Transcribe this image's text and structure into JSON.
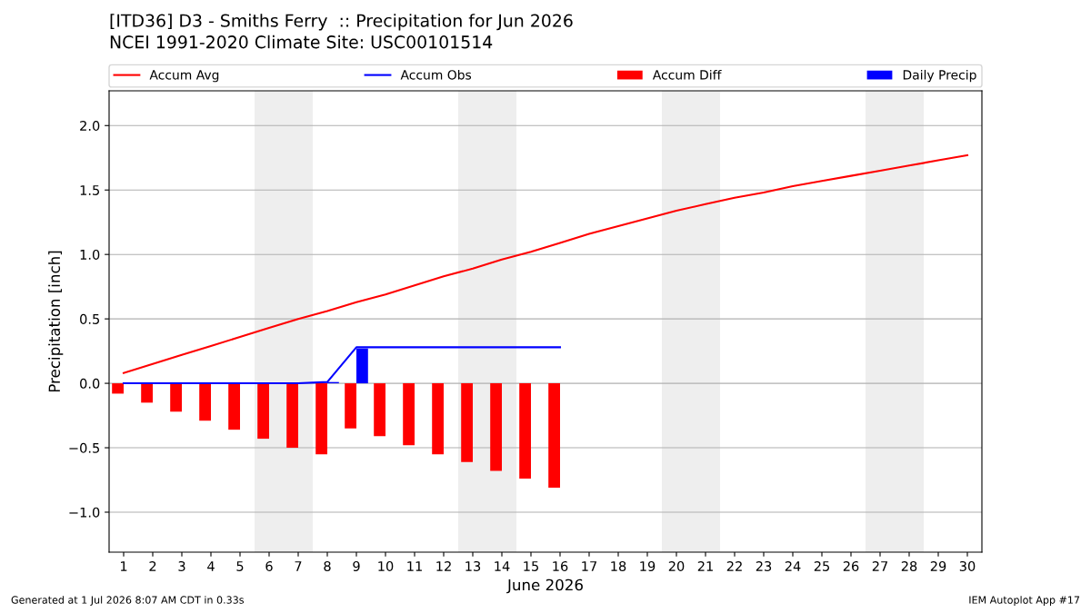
{
  "chart_data": {
    "type": "bar",
    "title": "[ITD36] D3 - Smiths Ferry  :: Precipitation for Jun 2026",
    "subtitle": "NCEI 1991-2020 Climate Site: USC00101514",
    "xlabel": "June 2026",
    "ylabel": "Precipitation [inch]",
    "x": [
      1,
      2,
      3,
      4,
      5,
      6,
      7,
      8,
      9,
      10,
      11,
      12,
      13,
      14,
      15,
      16,
      17,
      18,
      19,
      20,
      21,
      22,
      23,
      24,
      25,
      26,
      27,
      28,
      29,
      30
    ],
    "xlim": [
      0.5,
      30.5
    ],
    "xticks": [
      1,
      2,
      3,
      4,
      5,
      6,
      7,
      8,
      9,
      10,
      11,
      12,
      13,
      14,
      15,
      16,
      17,
      18,
      19,
      20,
      21,
      22,
      23,
      24,
      25,
      26,
      27,
      28,
      29,
      30
    ],
    "ylim": [
      -1.31,
      2.27
    ],
    "yticks": [
      {
        "value": -1.0,
        "label": "−1.0"
      },
      {
        "value": -0.5,
        "label": "−0.5"
      },
      {
        "value": 0.0,
        "label": "0.0"
      },
      {
        "value": 0.5,
        "label": "0.5"
      },
      {
        "value": 1.0,
        "label": "1.0"
      },
      {
        "value": 1.5,
        "label": "1.5"
      },
      {
        "value": 2.0,
        "label": "2.0"
      }
    ],
    "series": [
      {
        "name": "Accum Avg",
        "type": "line",
        "color": "#ff0000",
        "values": [
          0.08,
          0.15,
          0.22,
          0.29,
          0.36,
          0.43,
          0.5,
          0.56,
          0.63,
          0.69,
          0.76,
          0.83,
          0.89,
          0.96,
          1.02,
          1.09,
          1.16,
          1.22,
          1.28,
          1.34,
          1.39,
          1.44,
          1.48,
          1.53,
          1.57,
          1.61,
          1.65,
          1.69,
          1.73,
          1.77
        ]
      },
      {
        "name": "Accum Obs",
        "type": "line",
        "color": "#0000ff",
        "values": [
          0,
          0,
          0,
          0,
          0,
          0,
          0,
          0.01,
          0.28,
          0.28,
          0.28,
          0.28,
          0.28,
          0.28,
          0.28,
          0.28,
          null,
          null,
          null,
          null,
          null,
          null,
          null,
          null,
          null,
          null,
          null,
          null,
          null,
          null
        ]
      },
      {
        "name": "Accum Diff",
        "color": "#ff0000",
        "values": [
          -0.08,
          -0.15,
          -0.22,
          -0.29,
          -0.36,
          -0.43,
          -0.5,
          -0.55,
          -0.35,
          -0.41,
          -0.48,
          -0.55,
          -0.61,
          -0.68,
          -0.74,
          -0.81,
          null,
          null,
          null,
          null,
          null,
          null,
          null,
          null,
          null,
          null,
          null,
          null,
          null,
          null
        ]
      },
      {
        "name": "Daily Precip",
        "color": "#0000ff",
        "values": [
          0,
          0,
          0,
          0,
          0,
          0,
          0,
          0.01,
          0.27,
          0,
          0,
          0,
          0,
          0,
          0,
          0,
          null,
          null,
          null,
          null,
          null,
          null,
          null,
          null,
          null,
          null,
          null,
          null,
          null,
          null
        ]
      }
    ],
    "bands": [
      {
        "axis": "x",
        "from": 5.5,
        "to": 7.5,
        "color": "#eeeeee"
      },
      {
        "axis": "x",
        "from": 12.5,
        "to": 14.5,
        "color": "#eeeeee"
      },
      {
        "axis": "x",
        "from": 19.5,
        "to": 21.5,
        "color": "#eeeeee"
      },
      {
        "axis": "x",
        "from": 26.5,
        "to": 28.5,
        "color": "#eeeeee"
      }
    ],
    "grid": "y",
    "legend": "top",
    "annotations": [
      "Generated at 1 Jul 2026 8:07 AM CDT in 0.33s",
      "IEM Autoplot App #17"
    ]
  }
}
